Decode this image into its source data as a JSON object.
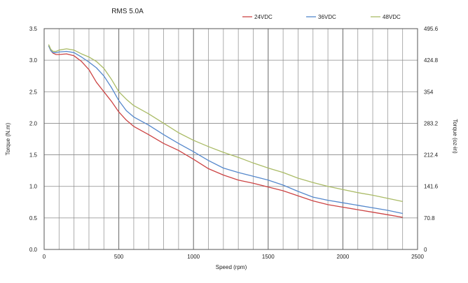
{
  "chart_data": {
    "type": "line",
    "title": "RMS 5.0A",
    "xlabel": "Speed (rpm)",
    "ylabel": "Torque (N.m)",
    "y2label": "Torque (oz-in)",
    "xlim": [
      0,
      2500
    ],
    "ylim": [
      0,
      3.5
    ],
    "x_ticks": [
      "0",
      "500",
      "1000",
      "1500",
      "2000",
      "2500"
    ],
    "x_minor_step": 100,
    "y_ticks": [
      "0.0",
      "0.5",
      "1.0",
      "1.5",
      "2.0",
      "2.5",
      "3.0",
      "3.5"
    ],
    "y2_ticks": [
      "0",
      "70.8",
      "141.6",
      "212.4",
      "283.2",
      "354",
      "424.8",
      "495.6"
    ],
    "grid": true,
    "legend_position": "top",
    "series": [
      {
        "name": "24VDC",
        "color": "#cc4444",
        "x": [
          30,
          45,
          60,
          80,
          100,
          150,
          200,
          250,
          300,
          350,
          400,
          450,
          500,
          550,
          600,
          700,
          800,
          900,
          1000,
          1100,
          1200,
          1300,
          1400,
          1500,
          1600,
          1700,
          1800,
          1900,
          2000,
          2100,
          2200,
          2300,
          2400
        ],
        "y": [
          3.23,
          3.15,
          3.11,
          3.09,
          3.09,
          3.1,
          3.07,
          2.98,
          2.85,
          2.65,
          2.5,
          2.35,
          2.18,
          2.05,
          1.95,
          1.82,
          1.68,
          1.57,
          1.43,
          1.28,
          1.18,
          1.1,
          1.05,
          0.99,
          0.93,
          0.85,
          0.77,
          0.71,
          0.67,
          0.63,
          0.59,
          0.55,
          0.51
        ]
      },
      {
        "name": "36VDC",
        "color": "#5588cc",
        "x": [
          30,
          45,
          60,
          80,
          100,
          150,
          200,
          250,
          300,
          350,
          400,
          450,
          500,
          550,
          600,
          700,
          800,
          900,
          1000,
          1100,
          1200,
          1300,
          1400,
          1500,
          1600,
          1700,
          1800,
          1900,
          2000,
          2100,
          2200,
          2300,
          2400
        ],
        "y": [
          3.23,
          3.15,
          3.12,
          3.12,
          3.13,
          3.14,
          3.12,
          3.05,
          2.97,
          2.88,
          2.75,
          2.57,
          2.36,
          2.2,
          2.1,
          1.97,
          1.82,
          1.68,
          1.55,
          1.41,
          1.29,
          1.22,
          1.16,
          1.1,
          1.02,
          0.92,
          0.83,
          0.78,
          0.74,
          0.7,
          0.66,
          0.62,
          0.57
        ]
      },
      {
        "name": "48VDC",
        "color": "#aabb66",
        "x": [
          30,
          45,
          60,
          80,
          100,
          150,
          200,
          250,
          300,
          350,
          400,
          450,
          500,
          550,
          600,
          700,
          800,
          900,
          1000,
          1100,
          1200,
          1300,
          1400,
          1500,
          1600,
          1700,
          1800,
          1900,
          2000,
          2100,
          2200,
          2300,
          2400
        ],
        "y": [
          3.25,
          3.17,
          3.14,
          3.14,
          3.16,
          3.18,
          3.16,
          3.1,
          3.05,
          2.98,
          2.87,
          2.7,
          2.5,
          2.38,
          2.28,
          2.15,
          2.0,
          1.85,
          1.73,
          1.63,
          1.54,
          1.46,
          1.37,
          1.29,
          1.22,
          1.13,
          1.06,
          1.0,
          0.95,
          0.9,
          0.86,
          0.81,
          0.76
        ]
      }
    ]
  }
}
